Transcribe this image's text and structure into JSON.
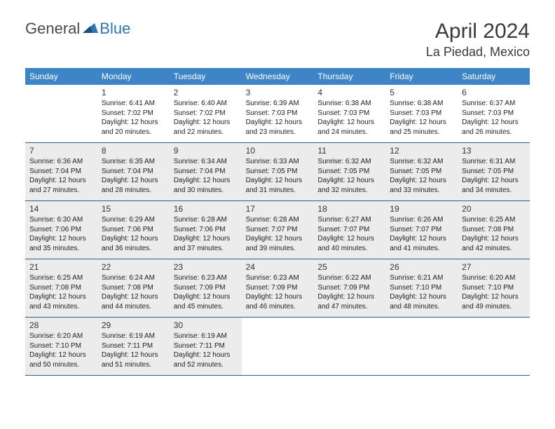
{
  "logo": {
    "general": "General",
    "blue": "Blue"
  },
  "title": "April 2024",
  "location": "La Piedad, Mexico",
  "colors": {
    "header_bg": "#3d85c6",
    "border": "#2e5b8a",
    "shaded": "#ececec",
    "logo_gray": "#4a4a4a",
    "logo_blue": "#2e75b6"
  },
  "weekdays": [
    "Sunday",
    "Monday",
    "Tuesday",
    "Wednesday",
    "Thursday",
    "Friday",
    "Saturday"
  ],
  "weeks": [
    [
      {
        "num": "",
        "lines": [],
        "shaded": false
      },
      {
        "num": "1",
        "lines": [
          "Sunrise: 6:41 AM",
          "Sunset: 7:02 PM",
          "Daylight: 12 hours",
          "and 20 minutes."
        ],
        "shaded": false
      },
      {
        "num": "2",
        "lines": [
          "Sunrise: 6:40 AM",
          "Sunset: 7:02 PM",
          "Daylight: 12 hours",
          "and 22 minutes."
        ],
        "shaded": false
      },
      {
        "num": "3",
        "lines": [
          "Sunrise: 6:39 AM",
          "Sunset: 7:03 PM",
          "Daylight: 12 hours",
          "and 23 minutes."
        ],
        "shaded": false
      },
      {
        "num": "4",
        "lines": [
          "Sunrise: 6:38 AM",
          "Sunset: 7:03 PM",
          "Daylight: 12 hours",
          "and 24 minutes."
        ],
        "shaded": false
      },
      {
        "num": "5",
        "lines": [
          "Sunrise: 6:38 AM",
          "Sunset: 7:03 PM",
          "Daylight: 12 hours",
          "and 25 minutes."
        ],
        "shaded": false
      },
      {
        "num": "6",
        "lines": [
          "Sunrise: 6:37 AM",
          "Sunset: 7:03 PM",
          "Daylight: 12 hours",
          "and 26 minutes."
        ],
        "shaded": false
      }
    ],
    [
      {
        "num": "7",
        "lines": [
          "Sunrise: 6:36 AM",
          "Sunset: 7:04 PM",
          "Daylight: 12 hours",
          "and 27 minutes."
        ],
        "shaded": true
      },
      {
        "num": "8",
        "lines": [
          "Sunrise: 6:35 AM",
          "Sunset: 7:04 PM",
          "Daylight: 12 hours",
          "and 28 minutes."
        ],
        "shaded": true
      },
      {
        "num": "9",
        "lines": [
          "Sunrise: 6:34 AM",
          "Sunset: 7:04 PM",
          "Daylight: 12 hours",
          "and 30 minutes."
        ],
        "shaded": true
      },
      {
        "num": "10",
        "lines": [
          "Sunrise: 6:33 AM",
          "Sunset: 7:05 PM",
          "Daylight: 12 hours",
          "and 31 minutes."
        ],
        "shaded": true
      },
      {
        "num": "11",
        "lines": [
          "Sunrise: 6:32 AM",
          "Sunset: 7:05 PM",
          "Daylight: 12 hours",
          "and 32 minutes."
        ],
        "shaded": true
      },
      {
        "num": "12",
        "lines": [
          "Sunrise: 6:32 AM",
          "Sunset: 7:05 PM",
          "Daylight: 12 hours",
          "and 33 minutes."
        ],
        "shaded": true
      },
      {
        "num": "13",
        "lines": [
          "Sunrise: 6:31 AM",
          "Sunset: 7:05 PM",
          "Daylight: 12 hours",
          "and 34 minutes."
        ],
        "shaded": true
      }
    ],
    [
      {
        "num": "14",
        "lines": [
          "Sunrise: 6:30 AM",
          "Sunset: 7:06 PM",
          "Daylight: 12 hours",
          "and 35 minutes."
        ],
        "shaded": true
      },
      {
        "num": "15",
        "lines": [
          "Sunrise: 6:29 AM",
          "Sunset: 7:06 PM",
          "Daylight: 12 hours",
          "and 36 minutes."
        ],
        "shaded": true
      },
      {
        "num": "16",
        "lines": [
          "Sunrise: 6:28 AM",
          "Sunset: 7:06 PM",
          "Daylight: 12 hours",
          "and 37 minutes."
        ],
        "shaded": true
      },
      {
        "num": "17",
        "lines": [
          "Sunrise: 6:28 AM",
          "Sunset: 7:07 PM",
          "Daylight: 12 hours",
          "and 39 minutes."
        ],
        "shaded": true
      },
      {
        "num": "18",
        "lines": [
          "Sunrise: 6:27 AM",
          "Sunset: 7:07 PM",
          "Daylight: 12 hours",
          "and 40 minutes."
        ],
        "shaded": true
      },
      {
        "num": "19",
        "lines": [
          "Sunrise: 6:26 AM",
          "Sunset: 7:07 PM",
          "Daylight: 12 hours",
          "and 41 minutes."
        ],
        "shaded": true
      },
      {
        "num": "20",
        "lines": [
          "Sunrise: 6:25 AM",
          "Sunset: 7:08 PM",
          "Daylight: 12 hours",
          "and 42 minutes."
        ],
        "shaded": true
      }
    ],
    [
      {
        "num": "21",
        "lines": [
          "Sunrise: 6:25 AM",
          "Sunset: 7:08 PM",
          "Daylight: 12 hours",
          "and 43 minutes."
        ],
        "shaded": true
      },
      {
        "num": "22",
        "lines": [
          "Sunrise: 6:24 AM",
          "Sunset: 7:08 PM",
          "Daylight: 12 hours",
          "and 44 minutes."
        ],
        "shaded": true
      },
      {
        "num": "23",
        "lines": [
          "Sunrise: 6:23 AM",
          "Sunset: 7:09 PM",
          "Daylight: 12 hours",
          "and 45 minutes."
        ],
        "shaded": true
      },
      {
        "num": "24",
        "lines": [
          "Sunrise: 6:23 AM",
          "Sunset: 7:09 PM",
          "Daylight: 12 hours",
          "and 46 minutes."
        ],
        "shaded": true
      },
      {
        "num": "25",
        "lines": [
          "Sunrise: 6:22 AM",
          "Sunset: 7:09 PM",
          "Daylight: 12 hours",
          "and 47 minutes."
        ],
        "shaded": true
      },
      {
        "num": "26",
        "lines": [
          "Sunrise: 6:21 AM",
          "Sunset: 7:10 PM",
          "Daylight: 12 hours",
          "and 48 minutes."
        ],
        "shaded": true
      },
      {
        "num": "27",
        "lines": [
          "Sunrise: 6:20 AM",
          "Sunset: 7:10 PM",
          "Daylight: 12 hours",
          "and 49 minutes."
        ],
        "shaded": true
      }
    ],
    [
      {
        "num": "28",
        "lines": [
          "Sunrise: 6:20 AM",
          "Sunset: 7:10 PM",
          "Daylight: 12 hours",
          "and 50 minutes."
        ],
        "shaded": true
      },
      {
        "num": "29",
        "lines": [
          "Sunrise: 6:19 AM",
          "Sunset: 7:11 PM",
          "Daylight: 12 hours",
          "and 51 minutes."
        ],
        "shaded": true
      },
      {
        "num": "30",
        "lines": [
          "Sunrise: 6:19 AM",
          "Sunset: 7:11 PM",
          "Daylight: 12 hours",
          "and 52 minutes."
        ],
        "shaded": true
      },
      {
        "num": "",
        "lines": [],
        "shaded": false
      },
      {
        "num": "",
        "lines": [],
        "shaded": false
      },
      {
        "num": "",
        "lines": [],
        "shaded": false
      },
      {
        "num": "",
        "lines": [],
        "shaded": false
      }
    ]
  ]
}
